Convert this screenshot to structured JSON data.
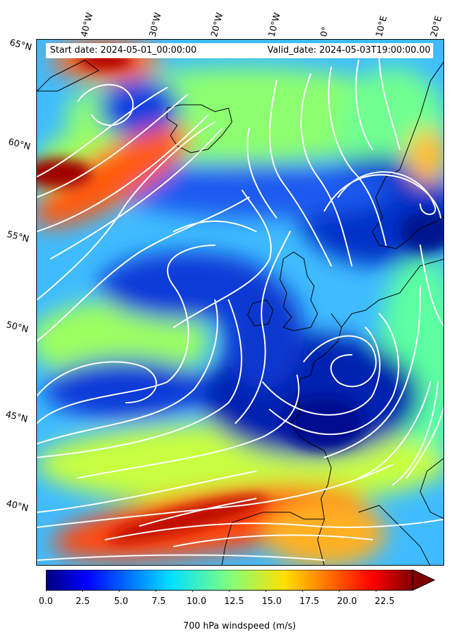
{
  "header": {
    "start_date": "Start date: 2024-05-01_00:00:00",
    "valid_date": "Valid_date: 2024-05-03T19:00:00.00"
  },
  "lat_labels": [
    "65°N",
    "60°N",
    "55°N",
    "50°N",
    "45°N",
    "40°N"
  ],
  "lon_labels": [
    "40°W",
    "30°W",
    "20°W",
    "10°W",
    "0°",
    "10°E",
    "20°E"
  ],
  "colorbar": {
    "label": "700 hPa windspeed (m/s)",
    "min": 0,
    "max": 25,
    "extend": "max",
    "colormap": "jet",
    "ticks": [
      "0.0",
      "2.5",
      "5.0",
      "7.5",
      "10.0",
      "12.5",
      "15.0",
      "17.5",
      "20.0",
      "22.5"
    ]
  },
  "colors": {
    "coastline": "#000000",
    "streamlines": "#ffffff"
  }
}
